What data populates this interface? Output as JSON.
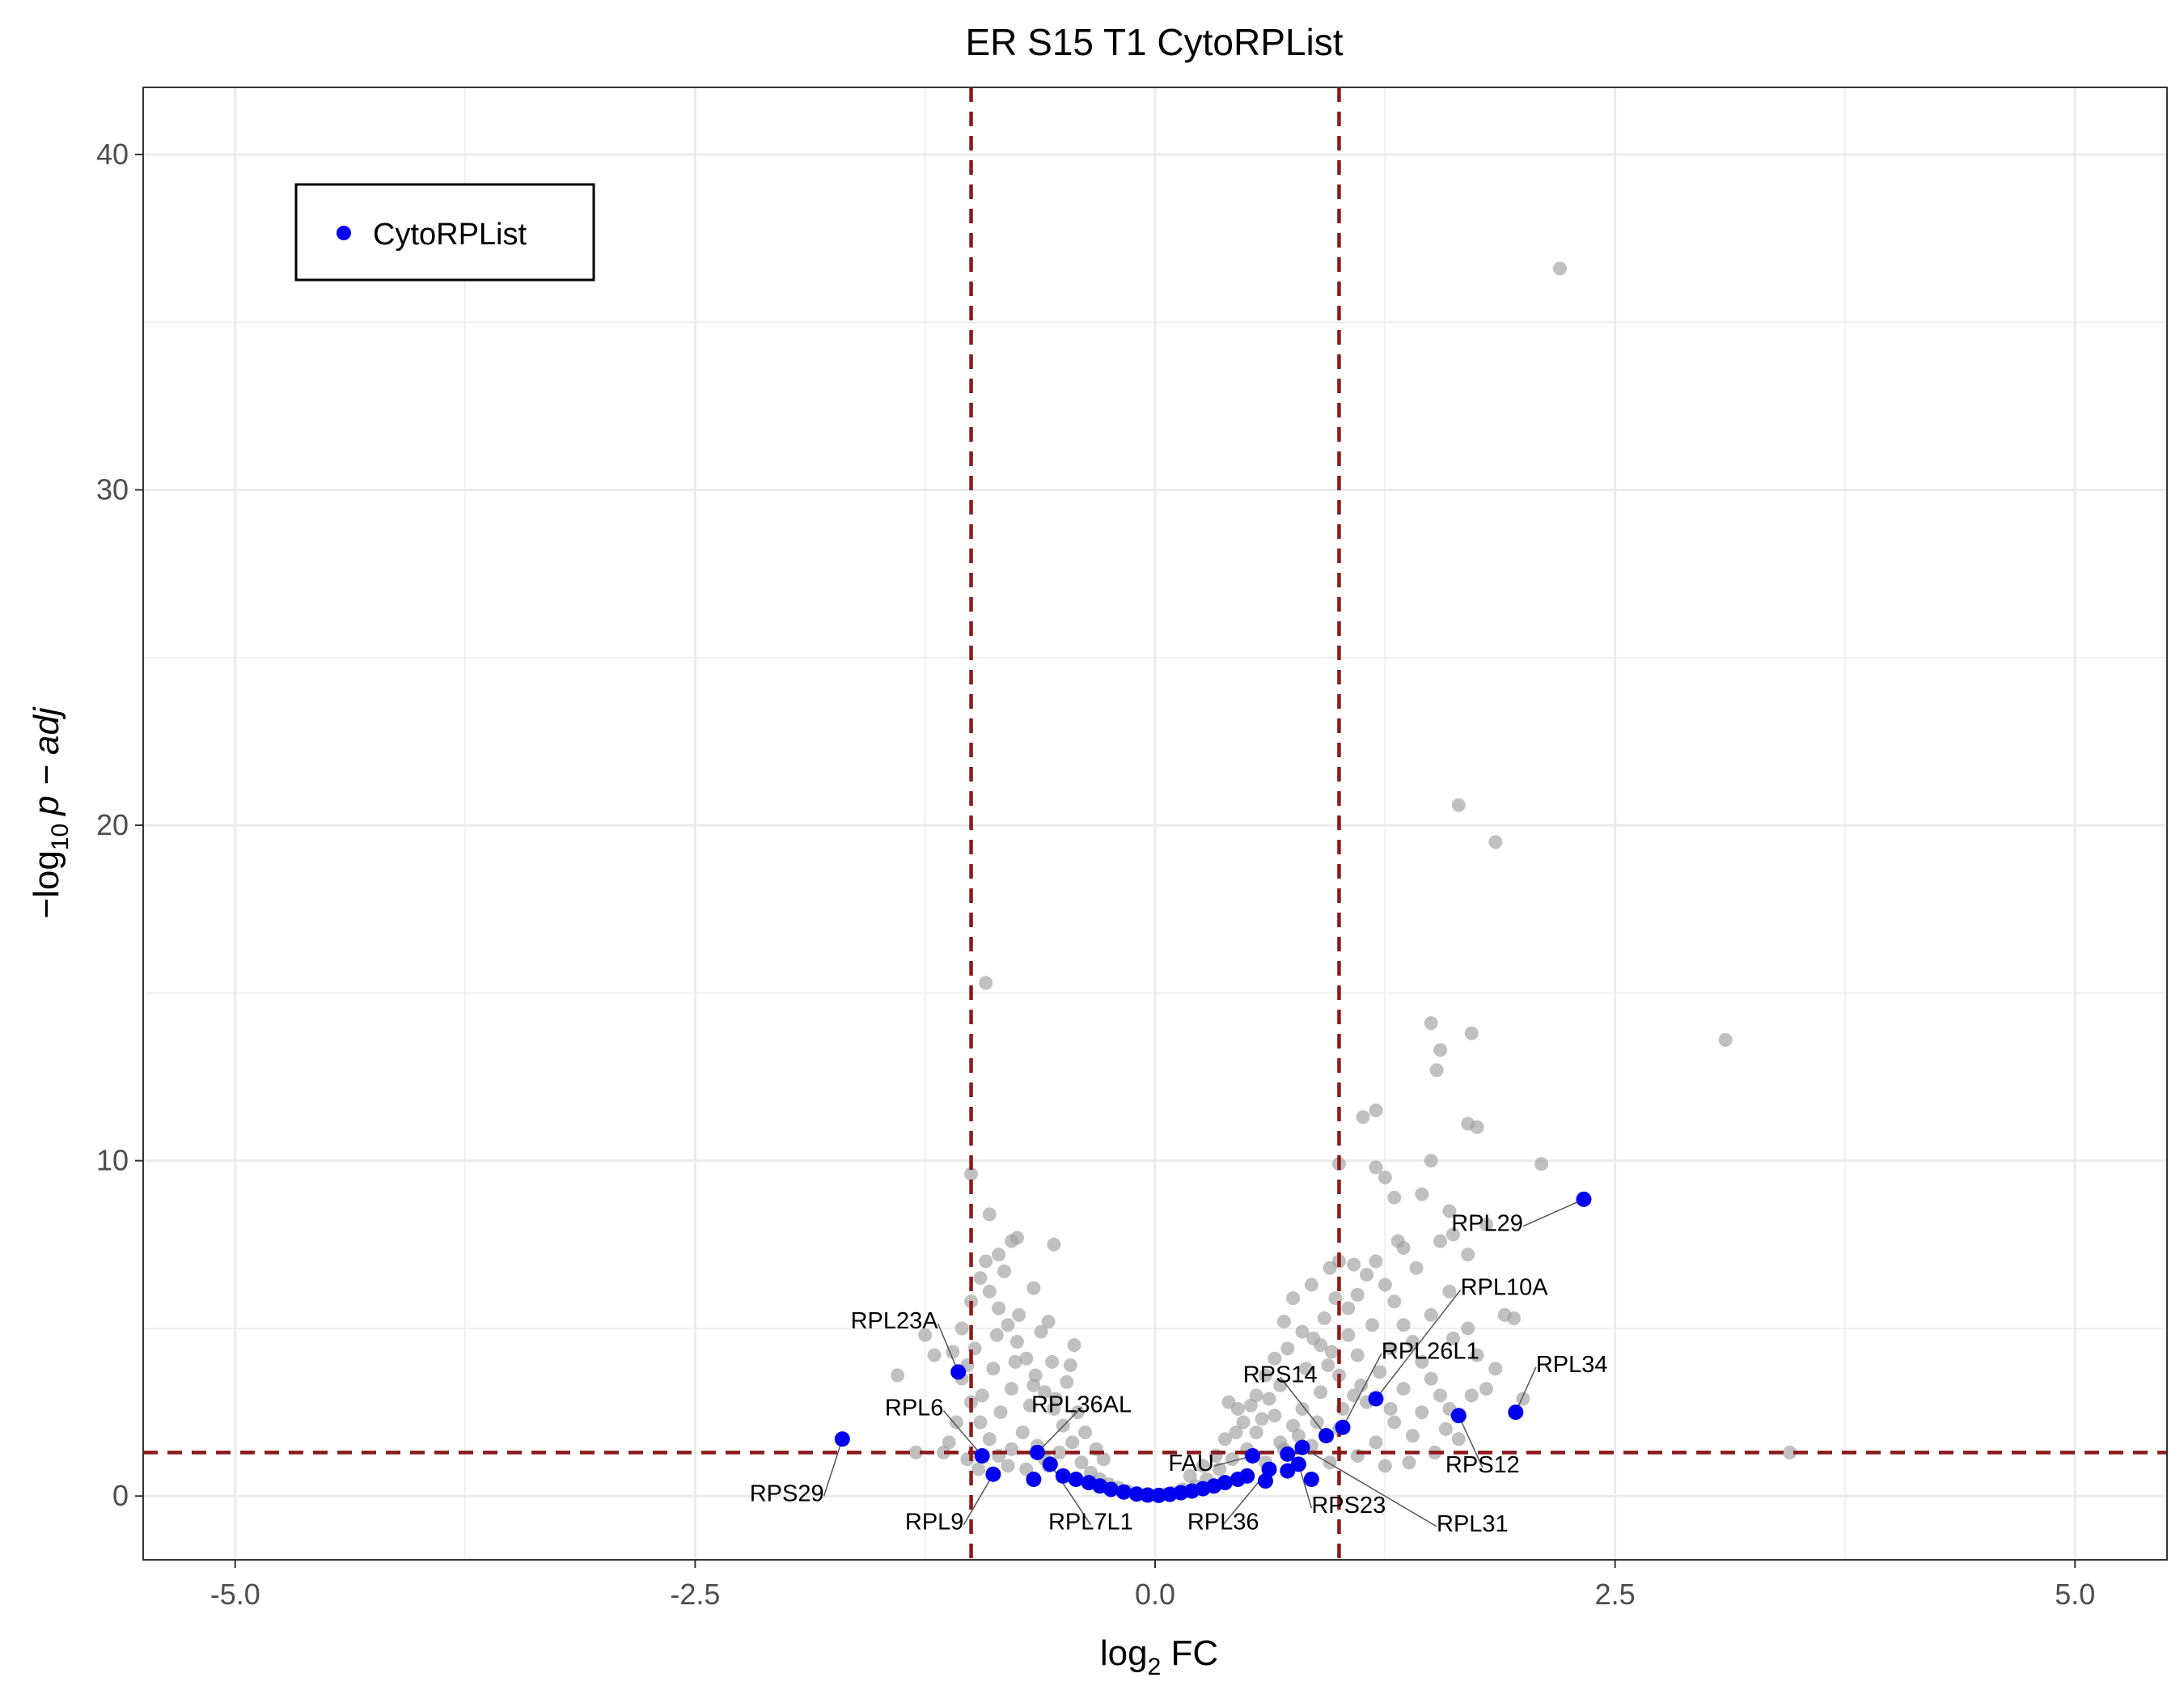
{
  "chart_data": {
    "type": "scatter",
    "title": "ER S15 T1 CytoRPList",
    "xlabel": {
      "main": "log",
      "sub": "2",
      "tail": " FC"
    },
    "ylabel": {
      "pre": "−log",
      "sub": "10",
      "tail": "p − adj"
    },
    "xlim": [
      -5.5,
      5.5
    ],
    "ylim": [
      -1.9,
      42
    ],
    "x_ticks": [
      -5.0,
      -2.5,
      0.0,
      2.5,
      5.0
    ],
    "x_tick_labels": [
      "-5.0",
      "-2.5",
      "0.0",
      "2.5",
      "5.0"
    ],
    "y_ticks": [
      0,
      10,
      20,
      30,
      40
    ],
    "y_tick_labels": [
      "0",
      "10",
      "20",
      "30",
      "40"
    ],
    "grid": true,
    "thresholds": {
      "fc": [
        -1,
        1
      ],
      "p_adj_neglog10": 1.3,
      "color": "#8b1a1a"
    },
    "legend": {
      "position": "top-left",
      "entries": [
        {
          "name": "CytoRPList",
          "color": "#0000ee"
        }
      ]
    },
    "background_color": "#9e9e9e",
    "highlight_color": "#0000ee",
    "background_points": [
      {
        "x": 2.2,
        "y": 36.6
      },
      {
        "x": 3.1,
        "y": 13.6
      },
      {
        "x": 1.65,
        "y": 20.6
      },
      {
        "x": 1.85,
        "y": 19.5
      },
      {
        "x": -0.92,
        "y": 15.3
      },
      {
        "x": 1.5,
        "y": 14.1
      },
      {
        "x": 1.72,
        "y": 13.8
      },
      {
        "x": 1.55,
        "y": 13.3
      },
      {
        "x": 1.53,
        "y": 12.7
      },
      {
        "x": 1.2,
        "y": 11.5
      },
      {
        "x": 1.13,
        "y": 11.3
      },
      {
        "x": 1.7,
        "y": 11.1
      },
      {
        "x": 1.75,
        "y": 11.0
      },
      {
        "x": 2.1,
        "y": 9.9
      },
      {
        "x": 1.5,
        "y": 10.0
      },
      {
        "x": 1.0,
        "y": 9.9
      },
      {
        "x": 1.2,
        "y": 9.8
      },
      {
        "x": -1.0,
        "y": 9.6
      },
      {
        "x": 1.25,
        "y": 9.5
      },
      {
        "x": 1.3,
        "y": 8.9
      },
      {
        "x": 1.45,
        "y": 9.0
      },
      {
        "x": 1.6,
        "y": 8.5
      },
      {
        "x": -0.9,
        "y": 8.4
      },
      {
        "x": 1.8,
        "y": 8.1
      },
      {
        "x": 1.62,
        "y": 7.8
      },
      {
        "x": 1.55,
        "y": 7.6
      },
      {
        "x": -0.75,
        "y": 7.7
      },
      {
        "x": -0.78,
        "y": 7.6
      },
      {
        "x": -0.55,
        "y": 7.5
      },
      {
        "x": 1.7,
        "y": 7.2
      },
      {
        "x": 1.35,
        "y": 7.4
      },
      {
        "x": 1.0,
        "y": 7.0
      },
      {
        "x": -0.85,
        "y": 7.2
      },
      {
        "x": 1.9,
        "y": 5.4
      },
      {
        "x": 1.95,
        "y": 5.3
      },
      {
        "x": 1.8,
        "y": 3.2
      },
      {
        "x": 1.72,
        "y": 3.0
      },
      {
        "x": 2.0,
        "y": 2.9
      },
      {
        "x": 3.45,
        "y": 1.3
      },
      {
        "x": -1.25,
        "y": 4.8
      },
      {
        "x": -1.2,
        "y": 4.2
      },
      {
        "x": -1.4,
        "y": 3.6
      },
      {
        "x": -1.3,
        "y": 1.3
      },
      {
        "x": -1.15,
        "y": 1.3
      },
      {
        "x": 0.45,
        "y": 2.6
      },
      {
        "x": 0.4,
        "y": 2.8
      },
      {
        "x": 0.55,
        "y": 3.0
      },
      {
        "x": 0.6,
        "y": 3.6
      },
      {
        "x": 0.65,
        "y": 4.1
      },
      {
        "x": 0.7,
        "y": 5.2
      },
      {
        "x": 0.75,
        "y": 5.9
      },
      {
        "x": 0.85,
        "y": 6.3
      },
      {
        "x": 0.95,
        "y": 6.8
      },
      {
        "x": 0.8,
        "y": 4.9
      },
      {
        "x": 0.9,
        "y": 4.5
      },
      {
        "x": 1.05,
        "y": 5.6
      },
      {
        "x": 1.1,
        "y": 6.0
      },
      {
        "x": 1.15,
        "y": 6.6
      },
      {
        "x": 1.2,
        "y": 7.0
      },
      {
        "x": 1.25,
        "y": 6.3
      },
      {
        "x": 1.3,
        "y": 5.8
      },
      {
        "x": 1.35,
        "y": 5.1
      },
      {
        "x": 1.4,
        "y": 4.6
      },
      {
        "x": 1.45,
        "y": 4.0
      },
      {
        "x": 1.5,
        "y": 3.5
      },
      {
        "x": 1.55,
        "y": 3.0
      },
      {
        "x": 1.6,
        "y": 2.6
      },
      {
        "x": 1.3,
        "y": 2.2
      },
      {
        "x": 1.2,
        "y": 1.6
      },
      {
        "x": 1.1,
        "y": 1.2
      },
      {
        "x": 1.25,
        "y": 0.9
      },
      {
        "x": 0.95,
        "y": 1.0
      },
      {
        "x": 0.85,
        "y": 1.5
      },
      {
        "x": 0.75,
        "y": 2.1
      },
      {
        "x": 0.65,
        "y": 2.4
      },
      {
        "x": 0.55,
        "y": 1.9
      },
      {
        "x": 0.5,
        "y": 1.4
      },
      {
        "x": 0.42,
        "y": 1.1
      },
      {
        "x": 0.35,
        "y": 0.8
      },
      {
        "x": 0.28,
        "y": 0.5
      },
      {
        "x": 0.22,
        "y": 0.3
      },
      {
        "x": 0.15,
        "y": 0.2
      },
      {
        "x": 0.1,
        "y": 0.1
      },
      {
        "x": 0.05,
        "y": 0.05
      },
      {
        "x": 0.6,
        "y": 1.0
      },
      {
        "x": 0.7,
        "y": 1.4
      },
      {
        "x": 0.8,
        "y": 2.6
      },
      {
        "x": 0.9,
        "y": 3.1
      },
      {
        "x": 1.0,
        "y": 3.6
      },
      {
        "x": 1.1,
        "y": 4.2
      },
      {
        "x": 1.0,
        "y": 2.0
      },
      {
        "x": 1.15,
        "y": 2.8
      },
      {
        "x": 1.35,
        "y": 3.2
      },
      {
        "x": 1.45,
        "y": 2.5
      },
      {
        "x": 1.4,
        "y": 1.8
      },
      {
        "x": 1.05,
        "y": 4.8
      },
      {
        "x": 0.92,
        "y": 5.3
      },
      {
        "x": 0.68,
        "y": 3.3
      },
      {
        "x": 0.48,
        "y": 2.2
      },
      {
        "x": 0.38,
        "y": 1.7
      },
      {
        "x": 1.58,
        "y": 2.0
      },
      {
        "x": 1.65,
        "y": 1.7
      },
      {
        "x": 1.52,
        "y": 1.3
      },
      {
        "x": 1.38,
        "y": 1.0
      },
      {
        "x": 1.28,
        "y": 4.4
      },
      {
        "x": 1.18,
        "y": 5.1
      },
      {
        "x": 0.98,
        "y": 5.9
      },
      {
        "x": 1.08,
        "y": 6.9
      },
      {
        "x": 1.32,
        "y": 7.6
      },
      {
        "x": 1.42,
        "y": 6.8
      },
      {
        "x": 1.6,
        "y": 6.1
      },
      {
        "x": 1.7,
        "y": 5.0
      },
      {
        "x": 1.75,
        "y": 4.2
      },
      {
        "x": 1.85,
        "y": 3.8
      },
      {
        "x": 1.62,
        "y": 4.7
      },
      {
        "x": 1.5,
        "y": 5.4
      },
      {
        "x": 0.72,
        "y": 4.4
      },
      {
        "x": 0.62,
        "y": 2.9
      },
      {
        "x": 0.82,
        "y": 3.8
      },
      {
        "x": 0.88,
        "y": 2.2
      },
      {
        "x": 0.78,
        "y": 1.8
      },
      {
        "x": 0.68,
        "y": 1.6
      },
      {
        "x": 0.58,
        "y": 2.3
      },
      {
        "x": 0.52,
        "y": 2.7
      },
      {
        "x": 0.44,
        "y": 1.9
      },
      {
        "x": 0.33,
        "y": 1.2
      },
      {
        "x": 0.26,
        "y": 0.9
      },
      {
        "x": 0.19,
        "y": 0.6
      },
      {
        "x": 1.22,
        "y": 3.7
      },
      {
        "x": 1.12,
        "y": 3.3
      },
      {
        "x": 1.02,
        "y": 2.6
      },
      {
        "x": 0.94,
        "y": 3.9
      },
      {
        "x": 0.86,
        "y": 4.7
      },
      {
        "x": 0.96,
        "y": 4.3
      },
      {
        "x": 1.08,
        "y": 3.0
      },
      {
        "x": 1.28,
        "y": 2.6
      },
      {
        "x": -0.45,
        "y": 1.6
      },
      {
        "x": -0.5,
        "y": 2.1
      },
      {
        "x": -0.55,
        "y": 2.6
      },
      {
        "x": -0.6,
        "y": 3.1
      },
      {
        "x": -0.65,
        "y": 3.6
      },
      {
        "x": -0.7,
        "y": 4.1
      },
      {
        "x": -0.75,
        "y": 4.6
      },
      {
        "x": -0.8,
        "y": 5.1
      },
      {
        "x": -0.85,
        "y": 5.6
      },
      {
        "x": -0.9,
        "y": 6.1
      },
      {
        "x": -0.95,
        "y": 6.5
      },
      {
        "x": -1.0,
        "y": 5.8
      },
      {
        "x": -1.05,
        "y": 5.0
      },
      {
        "x": -1.1,
        "y": 4.3
      },
      {
        "x": -1.05,
        "y": 3.5
      },
      {
        "x": -1.0,
        "y": 2.8
      },
      {
        "x": -0.95,
        "y": 2.2
      },
      {
        "x": -0.9,
        "y": 1.7
      },
      {
        "x": -0.85,
        "y": 1.2
      },
      {
        "x": -0.8,
        "y": 0.9
      },
      {
        "x": -0.7,
        "y": 0.8
      },
      {
        "x": -0.6,
        "y": 1.1
      },
      {
        "x": -0.52,
        "y": 1.3
      },
      {
        "x": -0.4,
        "y": 1.0
      },
      {
        "x": -0.35,
        "y": 0.7
      },
      {
        "x": -0.3,
        "y": 0.5
      },
      {
        "x": -0.25,
        "y": 0.35
      },
      {
        "x": -0.2,
        "y": 0.25
      },
      {
        "x": -0.15,
        "y": 0.15
      },
      {
        "x": -0.1,
        "y": 0.08
      },
      {
        "x": -0.05,
        "y": 0.04
      },
      {
        "x": -0.72,
        "y": 1.9
      },
      {
        "x": -0.68,
        "y": 2.7
      },
      {
        "x": -0.78,
        "y": 3.2
      },
      {
        "x": -0.88,
        "y": 3.8
      },
      {
        "x": -0.98,
        "y": 4.4
      },
      {
        "x": -0.62,
        "y": 4.9
      },
      {
        "x": -0.58,
        "y": 5.2
      },
      {
        "x": -0.82,
        "y": 6.7
      },
      {
        "x": -0.92,
        "y": 7.0
      },
      {
        "x": -0.66,
        "y": 6.2
      },
      {
        "x": -0.74,
        "y": 5.4
      },
      {
        "x": -0.56,
        "y": 4.0
      },
      {
        "x": -0.48,
        "y": 3.4
      },
      {
        "x": -0.42,
        "y": 2.5
      },
      {
        "x": -0.38,
        "y": 1.9
      },
      {
        "x": -0.32,
        "y": 1.4
      },
      {
        "x": -0.28,
        "y": 1.1
      },
      {
        "x": -1.08,
        "y": 2.2
      },
      {
        "x": -1.12,
        "y": 1.6
      },
      {
        "x": -1.02,
        "y": 1.1
      },
      {
        "x": -0.96,
        "y": 0.8
      },
      {
        "x": -0.86,
        "y": 4.8
      },
      {
        "x": -0.76,
        "y": 4.0
      },
      {
        "x": -0.66,
        "y": 3.3
      },
      {
        "x": -0.54,
        "y": 2.9
      },
      {
        "x": -0.46,
        "y": 3.9
      },
      {
        "x": -0.44,
        "y": 4.5
      },
      {
        "x": -0.64,
        "y": 1.5
      },
      {
        "x": -0.58,
        "y": 0.9
      },
      {
        "x": -0.94,
        "y": 3.0
      },
      {
        "x": -1.02,
        "y": 3.9
      },
      {
        "x": -0.84,
        "y": 2.5
      },
      {
        "x": -0.78,
        "y": 1.4
      }
    ],
    "highlight_points": [
      {
        "x": 2.33,
        "y": 8.85
      },
      {
        "x": -1.7,
        "y": 1.7
      },
      {
        "x": -1.07,
        "y": 3.7
      },
      {
        "x": 1.96,
        "y": 2.5
      },
      {
        "x": 1.65,
        "y": 2.4
      },
      {
        "x": 1.2,
        "y": 2.9
      },
      {
        "x": 1.02,
        "y": 2.05
      },
      {
        "x": 0.93,
        "y": 1.8
      },
      {
        "x": 0.8,
        "y": 1.45
      },
      {
        "x": 0.72,
        "y": 1.25
      },
      {
        "x": 0.78,
        "y": 0.95
      },
      {
        "x": 0.85,
        "y": 0.5
      },
      {
        "x": 0.62,
        "y": 0.8
      },
      {
        "x": 0.53,
        "y": 1.2
      },
      {
        "x": 0.5,
        "y": 0.6
      },
      {
        "x": 0.45,
        "y": 0.5
      },
      {
        "x": 0.38,
        "y": 0.4
      },
      {
        "x": 0.32,
        "y": 0.3
      },
      {
        "x": 0.26,
        "y": 0.22
      },
      {
        "x": 0.2,
        "y": 0.15
      },
      {
        "x": 0.14,
        "y": 0.1
      },
      {
        "x": 0.08,
        "y": 0.05
      },
      {
        "x": 0.02,
        "y": 0.02
      },
      {
        "x": -0.04,
        "y": 0.03
      },
      {
        "x": -0.1,
        "y": 0.06
      },
      {
        "x": -0.17,
        "y": 0.12
      },
      {
        "x": -0.24,
        "y": 0.2
      },
      {
        "x": -0.3,
        "y": 0.3
      },
      {
        "x": -0.36,
        "y": 0.4
      },
      {
        "x": -0.43,
        "y": 0.5
      },
      {
        "x": -0.5,
        "y": 0.6
      },
      {
        "x": -0.57,
        "y": 0.95
      },
      {
        "x": -0.64,
        "y": 1.3
      },
      {
        "x": -0.66,
        "y": 0.5
      },
      {
        "x": -0.88,
        "y": 0.65
      },
      {
        "x": -0.94,
        "y": 1.2
      },
      {
        "x": 0.72,
        "y": 0.75
      },
      {
        "x": 0.6,
        "y": 0.45
      }
    ],
    "annotations": [
      {
        "label": "RPL29",
        "x": 2.33,
        "y": 8.85,
        "tx": 2.0,
        "ty": 7.9,
        "anchor": "end"
      },
      {
        "label": "RPL10A",
        "x": 1.2,
        "y": 2.9,
        "tx": 1.66,
        "ty": 6.0,
        "anchor": "start"
      },
      {
        "label": "RPL26L1",
        "x": 1.02,
        "y": 2.05,
        "tx": 1.23,
        "ty": 4.1,
        "anchor": "start"
      },
      {
        "label": "RPL34",
        "x": 1.96,
        "y": 2.5,
        "tx": 2.07,
        "ty": 3.7,
        "anchor": "start"
      },
      {
        "label": "RPS14",
        "x": 0.93,
        "y": 1.8,
        "tx": 0.68,
        "ty": 3.4,
        "anchor": "middle"
      },
      {
        "label": "RPS12",
        "x": 1.65,
        "y": 2.4,
        "tx": 1.78,
        "ty": 0.7,
        "anchor": "middle"
      },
      {
        "label": "FAU",
        "x": 0.53,
        "y": 1.2,
        "tx": 0.32,
        "ty": 0.75,
        "anchor": "end"
      },
      {
        "label": "RPS23",
        "x": 0.78,
        "y": 0.95,
        "tx": 0.85,
        "ty": -0.5,
        "anchor": "start"
      },
      {
        "label": "RPL31",
        "x": 0.8,
        "y": 1.45,
        "tx": 1.53,
        "ty": -1.05,
        "anchor": "start"
      },
      {
        "label": "RPL36",
        "x": 0.62,
        "y": 0.8,
        "tx": 0.37,
        "ty": -1.0,
        "anchor": "middle"
      },
      {
        "label": "RPL23A",
        "x": -1.07,
        "y": 3.7,
        "tx": -1.18,
        "ty": 5.0,
        "anchor": "end"
      },
      {
        "label": "RPL6",
        "x": -0.94,
        "y": 1.2,
        "tx": -1.15,
        "ty": 2.4,
        "anchor": "end"
      },
      {
        "label": "RPL36AL",
        "x": -0.64,
        "y": 1.3,
        "tx": -0.4,
        "ty": 2.5,
        "anchor": "middle"
      },
      {
        "label": "RPS29",
        "x": -1.7,
        "y": 1.7,
        "tx": -1.8,
        "ty": -0.15,
        "anchor": "end"
      },
      {
        "label": "RPL9",
        "x": -0.88,
        "y": 0.65,
        "tx": -1.04,
        "ty": -1.0,
        "anchor": "end"
      },
      {
        "label": "RPL7L1",
        "x": -0.57,
        "y": 0.95,
        "tx": -0.35,
        "ty": -1.0,
        "anchor": "middle"
      }
    ]
  }
}
